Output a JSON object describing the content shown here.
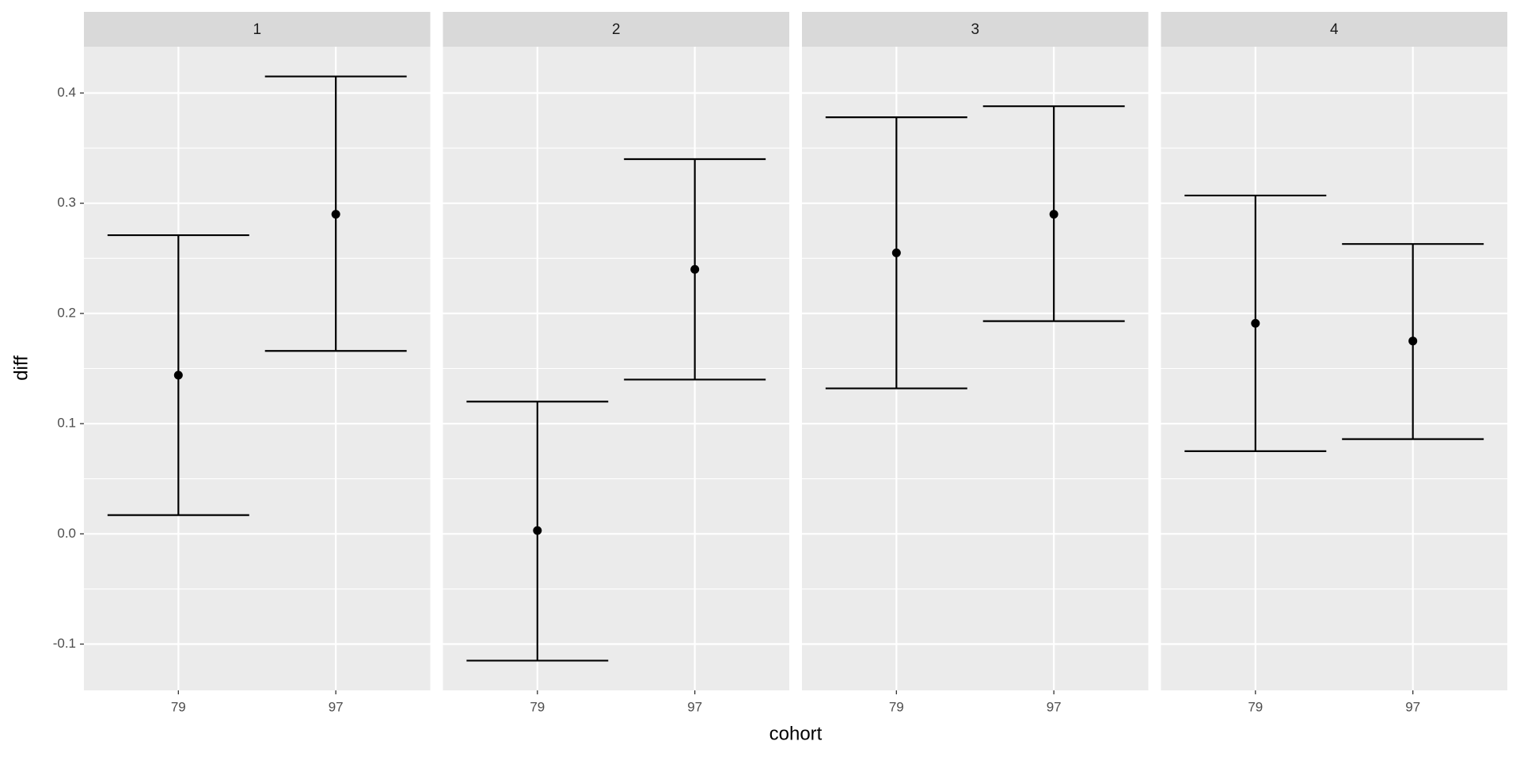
{
  "chart_data": {
    "type": "errorbar",
    "xlabel": "cohort",
    "ylabel": "diff",
    "ylim": [
      -0.142,
      0.442
    ],
    "yticks": [
      -0.1,
      {
        "value": 0,
        "label": "0.0"
      },
      0.1,
      0.2,
      0.3,
      0.4
    ],
    "grid": true,
    "color": "#000000",
    "facets": [
      {
        "title": "1",
        "categories": [
          "79",
          "97"
        ],
        "values": [
          0.144,
          0.29
        ],
        "lower": [
          0.017,
          0.166
        ],
        "upper": [
          0.271,
          0.415
        ]
      },
      {
        "title": "2",
        "categories": [
          "79",
          "97"
        ],
        "values": [
          0.003,
          0.24
        ],
        "lower": [
          -0.115,
          0.14
        ],
        "upper": [
          0.12,
          0.34
        ]
      },
      {
        "title": "3",
        "categories": [
          "79",
          "97"
        ],
        "values": [
          0.255,
          0.29
        ],
        "lower": [
          0.132,
          0.193
        ],
        "upper": [
          0.378,
          0.388
        ]
      },
      {
        "title": "4",
        "categories": [
          "79",
          "97"
        ],
        "values": [
          0.191,
          0.175
        ],
        "lower": [
          0.075,
          0.086
        ],
        "upper": [
          0.307,
          0.263
        ]
      }
    ]
  }
}
